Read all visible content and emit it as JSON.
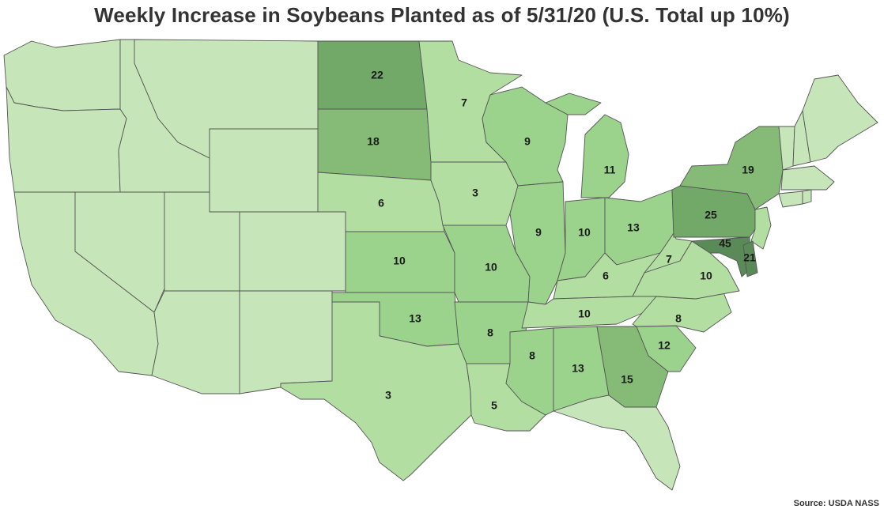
{
  "title": "Weekly Increase in Soybeans Planted as of 5/31/20 (U.S. Total up 10%)",
  "source": "Source: USDA NASS",
  "colors": {
    "none": "#c6e5b9",
    "low": "#b3dea2",
    "mid": "#9bd28c",
    "high": "#86bb77",
    "higher": "#72a969",
    "max": "#5a8a58",
    "border": "#555555"
  },
  "states": [
    {
      "id": "ND",
      "value": "22"
    },
    {
      "id": "SD",
      "value": "18"
    },
    {
      "id": "NE",
      "value": "6"
    },
    {
      "id": "KS",
      "value": "10"
    },
    {
      "id": "OK",
      "value": "13"
    },
    {
      "id": "TX",
      "value": "3"
    },
    {
      "id": "MN",
      "value": "7"
    },
    {
      "id": "IA",
      "value": "3"
    },
    {
      "id": "MO",
      "value": "10"
    },
    {
      "id": "AR",
      "value": "8"
    },
    {
      "id": "LA",
      "value": "5"
    },
    {
      "id": "WI",
      "value": "9"
    },
    {
      "id": "IL",
      "value": "9"
    },
    {
      "id": "MS",
      "value": "8"
    },
    {
      "id": "MI",
      "value": "11"
    },
    {
      "id": "IN",
      "value": "10"
    },
    {
      "id": "OH",
      "value": "13"
    },
    {
      "id": "KY",
      "value": "6"
    },
    {
      "id": "TN",
      "value": "10"
    },
    {
      "id": "AL",
      "value": "13"
    },
    {
      "id": "GA",
      "value": "15"
    },
    {
      "id": "SC",
      "value": "12"
    },
    {
      "id": "NC",
      "value": "8"
    },
    {
      "id": "VA",
      "value": "10"
    },
    {
      "id": "WV",
      "value": "7"
    },
    {
      "id": "PA",
      "value": "25"
    },
    {
      "id": "NY",
      "value": "19"
    },
    {
      "id": "MD",
      "value": "45"
    },
    {
      "id": "DE",
      "value": "21"
    }
  ]
}
